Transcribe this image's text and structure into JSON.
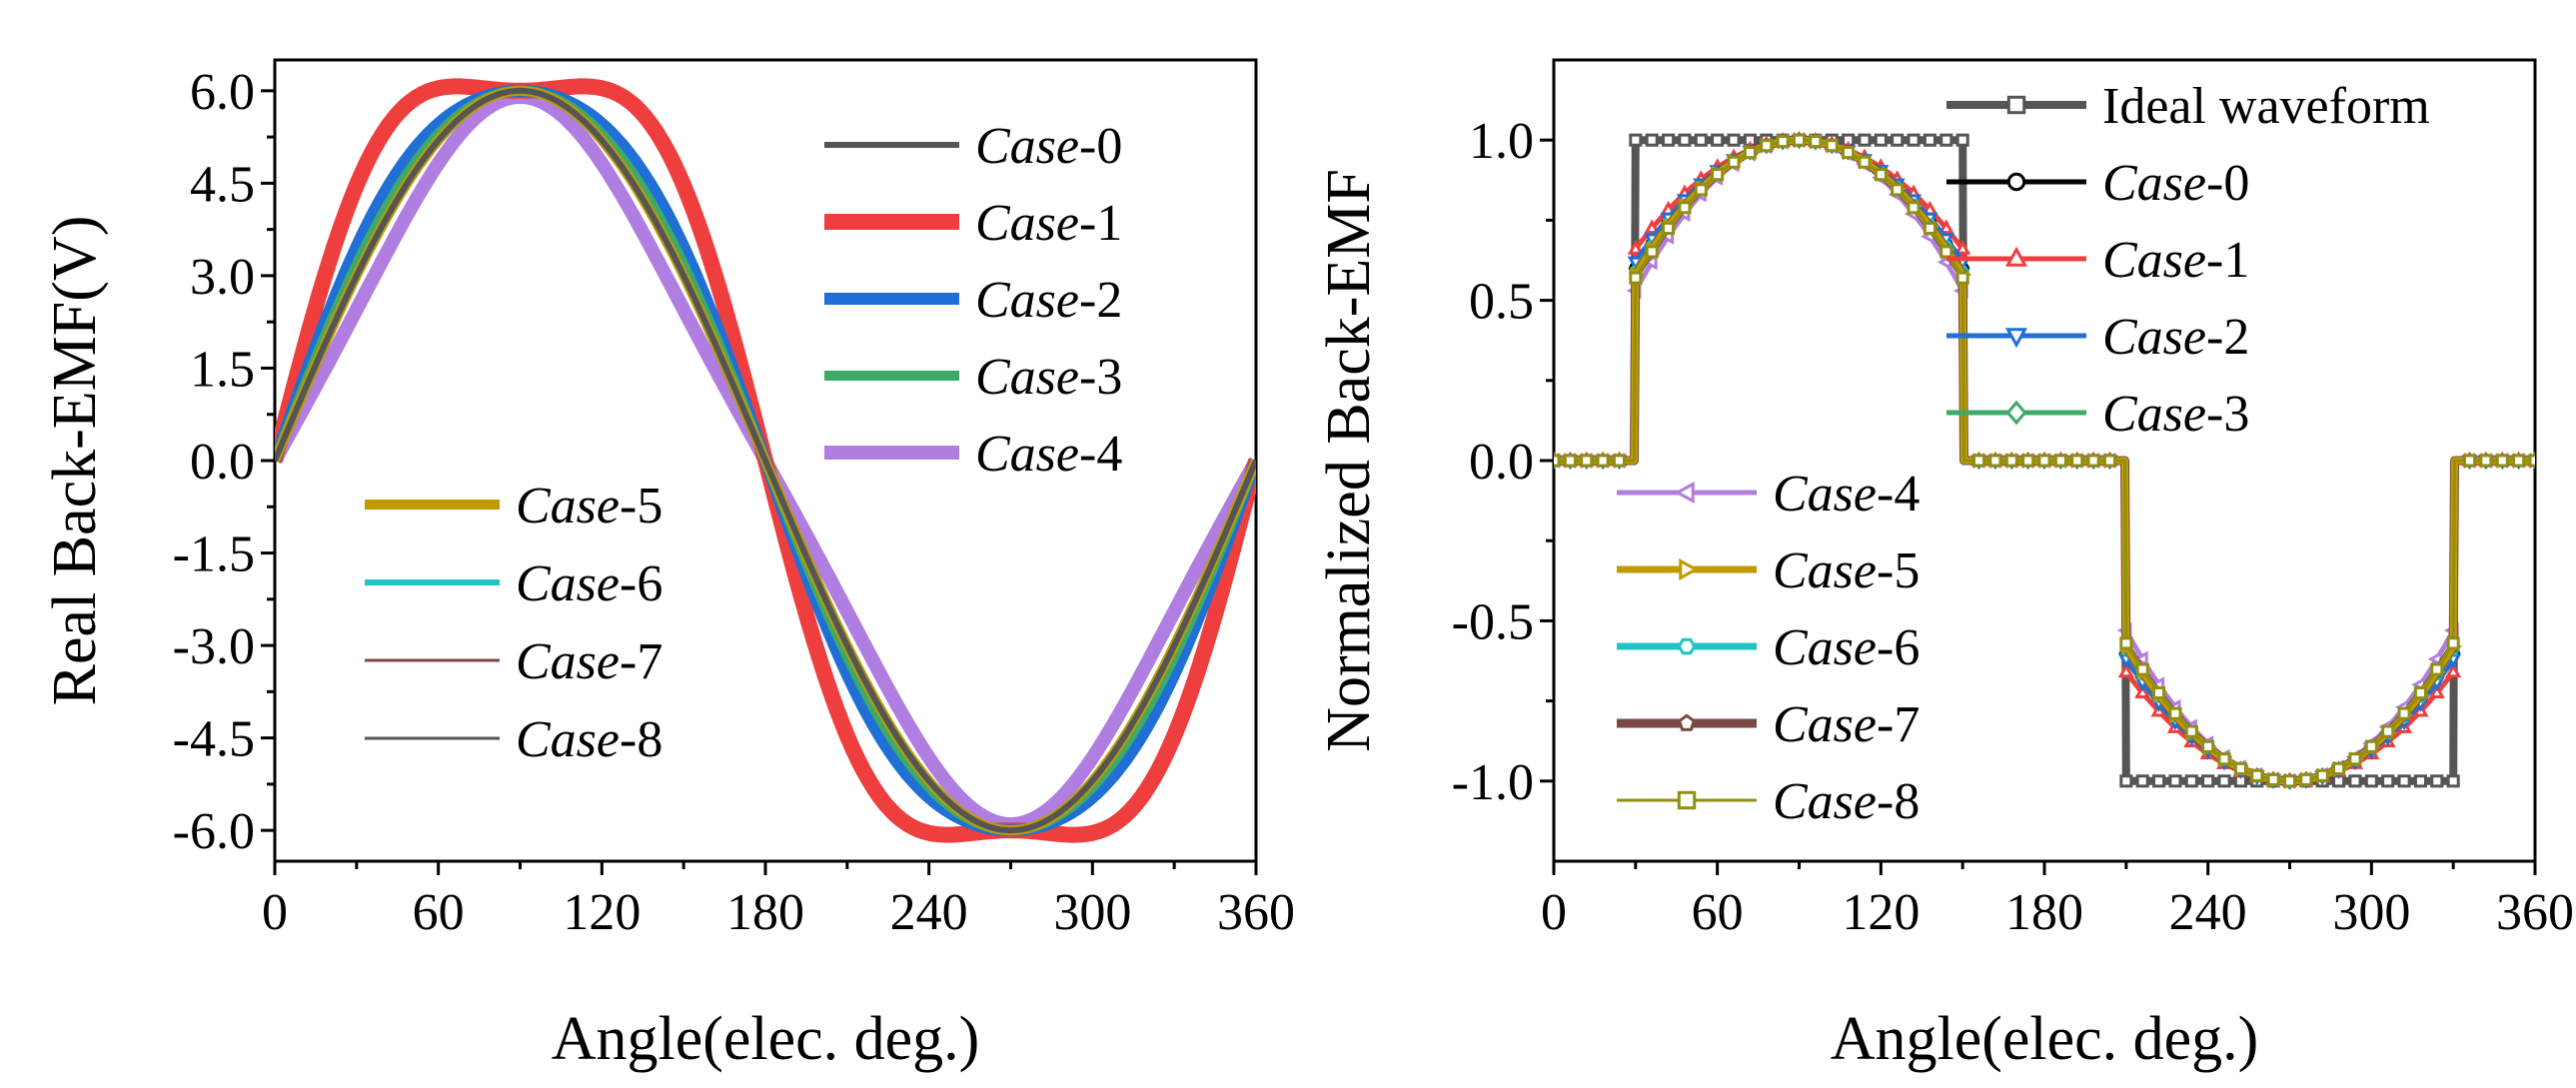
{
  "chart_data": [
    {
      "id": "left",
      "type": "line",
      "xlabel": "Angle(elec. deg.)",
      "ylabel": "Real Back-EMF(V)",
      "xlim": [
        0,
        360
      ],
      "ylim": [
        -6.5,
        6.5
      ],
      "xticks": [
        "0",
        "60",
        "120",
        "180",
        "240",
        "300",
        "360"
      ],
      "xtick_values": [
        0,
        60,
        120,
        180,
        240,
        300,
        360
      ],
      "yticks": [
        "6.0",
        "4.5",
        "3.0",
        "1.5",
        "0.0",
        "-1.5",
        "-3.0",
        "-4.5",
        "-6.0"
      ],
      "ytick_values": [
        6.0,
        4.5,
        3.0,
        1.5,
        0.0,
        -1.5,
        -3.0,
        -4.5,
        -6.0
      ],
      "legend_columns": [
        {
          "placement": "top-right",
          "entries": [
            0,
            1,
            2,
            3,
            4
          ]
        },
        {
          "placement": "lower-left",
          "entries": [
            5,
            6,
            7,
            8
          ]
        }
      ],
      "series": [
        {
          "name": "Case-0",
          "italic": "Case",
          "suffix": "-0",
          "color": "#555555",
          "amplitude": 6.0,
          "flatness": 0.0
        },
        {
          "name": "Case-1",
          "italic": "Case",
          "suffix": "-1",
          "color": "#ef3e3e",
          "amplitude": 6.0,
          "flatness": 0.14
        },
        {
          "name": "Case-2",
          "italic": "Case",
          "suffix": "-2",
          "color": "#1f6fd6",
          "amplitude": 6.0,
          "flatness": 0.05
        },
        {
          "name": "Case-3",
          "italic": "Case",
          "suffix": "-3",
          "color": "#3daa6a",
          "amplitude": 6.0,
          "flatness": 0.02
        },
        {
          "name": "Case-4",
          "italic": "Case",
          "suffix": "-4",
          "color": "#b07ee0",
          "amplitude": 5.9,
          "flatness": -0.06
        },
        {
          "name": "Case-5",
          "italic": "Case",
          "suffix": "-5",
          "color": "#c29a00",
          "amplitude": 6.0,
          "flatness": 0.0
        },
        {
          "name": "Case-6",
          "italic": "Case",
          "suffix": "-6",
          "color": "#22c3c3",
          "amplitude": 6.0,
          "flatness": 0.0
        },
        {
          "name": "Case-7",
          "italic": "Case",
          "suffix": "-7",
          "color": "#7a4a42",
          "amplitude": 6.0,
          "flatness": 0.0
        },
        {
          "name": "Case-8",
          "italic": "Case",
          "suffix": "-8",
          "color": "#555555",
          "amplitude": 6.0,
          "flatness": 0.0
        }
      ]
    },
    {
      "id": "right",
      "type": "line",
      "xlabel": "Angle(elec. deg.)",
      "ylabel": "Normalized Back-EMF",
      "xlim": [
        0,
        360
      ],
      "ylim": [
        -1.25,
        1.25
      ],
      "xticks": [
        "0",
        "60",
        "120",
        "180",
        "240",
        "300",
        "360"
      ],
      "xtick_values": [
        0,
        60,
        120,
        180,
        240,
        300,
        360
      ],
      "yticks": [
        "1.0",
        "0.5",
        "0.0",
        "-0.5",
        "-1.0"
      ],
      "ytick_values": [
        1.0,
        0.5,
        0.0,
        -0.5,
        -1.0
      ],
      "marker_step_deg": 6,
      "flat_regions_deg": {
        "rise_start": 30,
        "fall_end": 150,
        "neg_start": 210,
        "neg_end": 330
      },
      "legend_columns": [
        {
          "placement": "top-right",
          "entries": [
            0,
            1,
            2,
            3,
            4
          ]
        },
        {
          "placement": "lower-left",
          "entries": [
            5,
            6,
            7,
            8,
            9
          ]
        }
      ],
      "series": [
        {
          "name": "Ideal waveform",
          "italic": "",
          "suffix": "Ideal waveform",
          "color": "#555555",
          "marker": "square",
          "edge_value": 1.0
        },
        {
          "name": "Case-0",
          "italic": "Case",
          "suffix": "-0",
          "color": "#000000",
          "marker": "circle",
          "edge_value": 0.6
        },
        {
          "name": "Case-1",
          "italic": "Case",
          "suffix": "-1",
          "color": "#ef3e3e",
          "marker": "triangle-up",
          "edge_value": 0.66
        },
        {
          "name": "Case-2",
          "italic": "Case",
          "suffix": "-2",
          "color": "#1f6fd6",
          "marker": "triangle-down",
          "edge_value": 0.62
        },
        {
          "name": "Case-3",
          "italic": "Case",
          "suffix": "-3",
          "color": "#3daa6a",
          "marker": "diamond",
          "edge_value": 0.6
        },
        {
          "name": "Case-4",
          "italic": "Case",
          "suffix": "-4",
          "color": "#b07ee0",
          "marker": "triangle-left",
          "edge_value": 0.53
        },
        {
          "name": "Case-5",
          "italic": "Case",
          "suffix": "-5",
          "color": "#c29a00",
          "marker": "triangle-right",
          "edge_value": 0.58
        },
        {
          "name": "Case-6",
          "italic": "Case",
          "suffix": "-6",
          "color": "#22c3c3",
          "marker": "hexagon",
          "edge_value": 0.59
        },
        {
          "name": "Case-7",
          "italic": "Case",
          "suffix": "-7",
          "color": "#7a4a42",
          "marker": "pentagon",
          "edge_value": 0.58
        },
        {
          "name": "Case-8",
          "italic": "Case",
          "suffix": "-8",
          "color": "#8f8f12",
          "marker": "square",
          "edge_value": 0.57
        }
      ]
    }
  ]
}
